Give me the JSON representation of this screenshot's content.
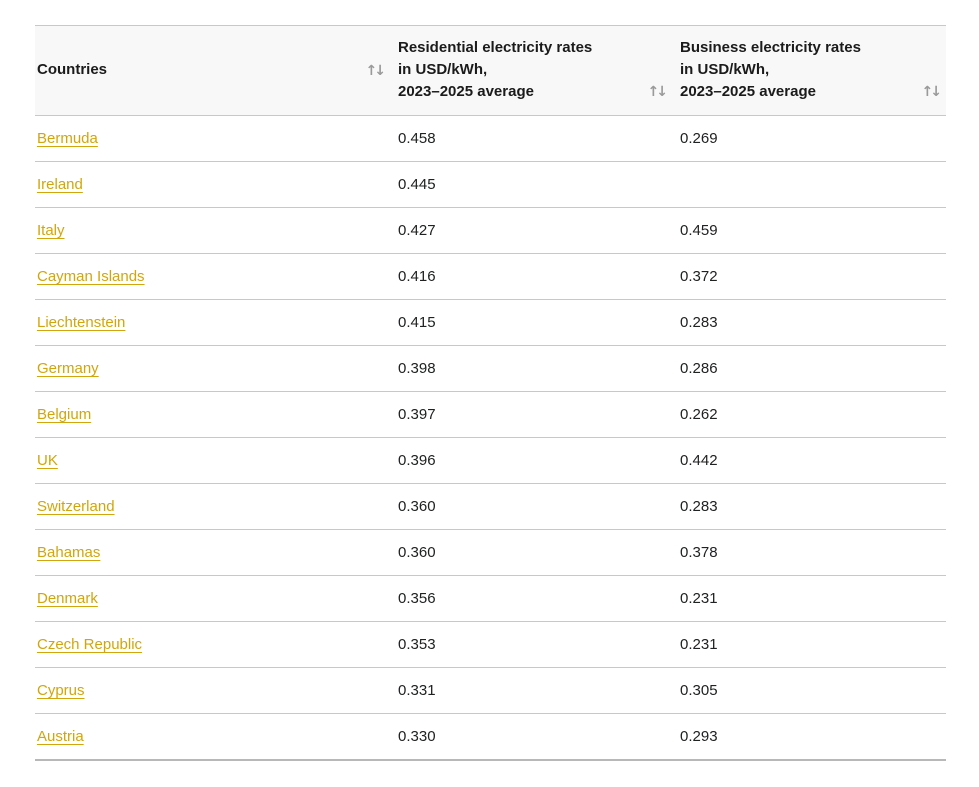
{
  "colors": {
    "link": "#d2a60a",
    "text": "#202122",
    "header_bg": "#f8f8f8",
    "border": "#c8c8c8",
    "sort_icon": "#9a9a9a"
  },
  "icons": {
    "sort": "↑↓"
  },
  "table": {
    "headers": [
      {
        "label": "Countries"
      },
      {
        "label": "Residential electricity rates\nin USD/kWh,\n2023–2025 average"
      },
      {
        "label": "Business electricity rates\nin USD/kWh,\n2023–2025 average"
      }
    ],
    "rows": [
      {
        "country": "Bermuda",
        "residential": "0.458",
        "business": "0.269"
      },
      {
        "country": "Ireland",
        "residential": "0.445",
        "business": ""
      },
      {
        "country": "Italy",
        "residential": "0.427",
        "business": "0.459"
      },
      {
        "country": "Cayman Islands",
        "residential": "0.416",
        "business": "0.372"
      },
      {
        "country": "Liechtenstein",
        "residential": "0.415",
        "business": "0.283"
      },
      {
        "country": "Germany",
        "residential": "0.398",
        "business": "0.286"
      },
      {
        "country": "Belgium",
        "residential": "0.397",
        "business": "0.262"
      },
      {
        "country": "UK",
        "residential": "0.396",
        "business": "0.442"
      },
      {
        "country": "Switzerland",
        "residential": "0.360",
        "business": "0.283"
      },
      {
        "country": "Bahamas",
        "residential": "0.360",
        "business": "0.378"
      },
      {
        "country": "Denmark",
        "residential": "0.356",
        "business": "0.231"
      },
      {
        "country": "Czech Republic",
        "residential": "0.353",
        "business": "0.231"
      },
      {
        "country": "Cyprus",
        "residential": "0.331",
        "business": "0.305"
      },
      {
        "country": "Austria",
        "residential": "0.330",
        "business": "0.293"
      }
    ]
  }
}
